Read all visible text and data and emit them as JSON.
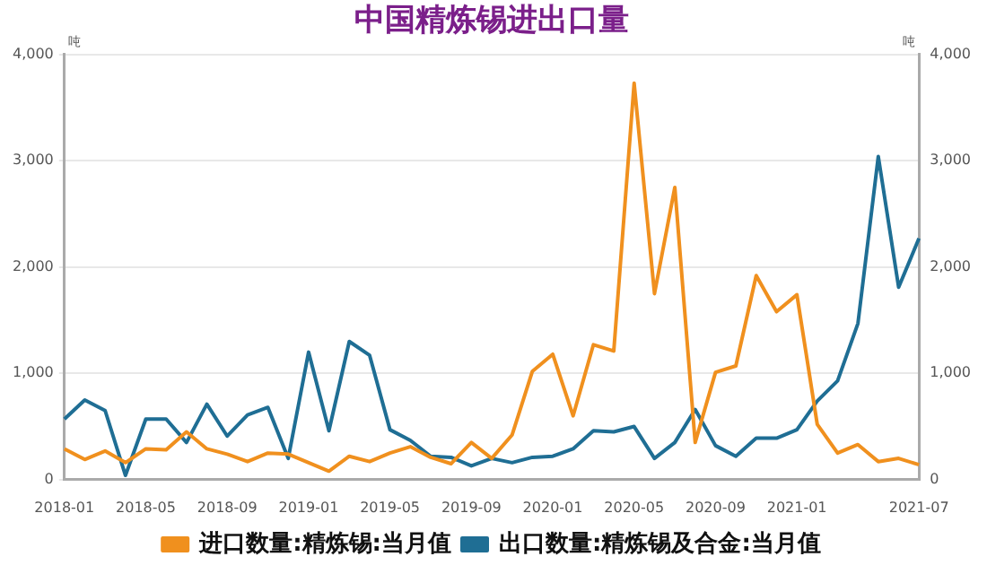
{
  "chart_data": {
    "type": "line",
    "title": "中国精炼锡进出口量",
    "ylabel": "吨",
    "y2label": "吨",
    "categories": [
      "2018-01",
      null,
      null,
      null,
      "2018-05",
      null,
      null,
      null,
      "2018-09",
      null,
      null,
      null,
      "2019-01",
      null,
      null,
      null,
      "2019-05",
      null,
      null,
      null,
      "2019-09",
      null,
      null,
      null,
      "2020-01",
      null,
      null,
      null,
      "2020-05",
      null,
      null,
      null,
      "2020-09",
      null,
      null,
      null,
      "2021-01",
      null,
      null,
      null,
      null,
      null,
      "2021-07"
    ],
    "series": [
      {
        "name": "进口数量:精炼锡:当月值",
        "color": "#f0901e",
        "values": [
          290,
          190,
          270,
          160,
          290,
          280,
          450,
          290,
          240,
          170,
          250,
          240,
          160,
          80,
          220,
          170,
          250,
          310,
          210,
          150,
          350,
          200,
          420,
          1020,
          1180,
          600,
          1270,
          1210,
          3730,
          1750,
          2750,
          350,
          1010,
          1070,
          1920,
          1580,
          1740,
          520,
          250,
          330,
          170,
          200,
          140
        ]
      },
      {
        "name": "出口数量:精炼锡及合金:当月值",
        "color": "#1f6e94",
        "values": [
          570,
          750,
          650,
          40,
          570,
          570,
          350,
          710,
          410,
          610,
          680,
          200,
          1200,
          460,
          1300,
          1170,
          470,
          370,
          220,
          210,
          130,
          200,
          160,
          210,
          220,
          290,
          460,
          450,
          500,
          200,
          350,
          660,
          320,
          220,
          390,
          390,
          470,
          740,
          930,
          1470,
          3040,
          1810,
          2270
        ]
      }
    ],
    "ylim": [
      0,
      4000
    ],
    "yticks": [
      {
        "value": 0,
        "label": "0"
      },
      {
        "value": 1000,
        "label": "1,000"
      },
      {
        "value": 2000,
        "label": "2,000"
      },
      {
        "value": 3000,
        "label": "3,000"
      },
      {
        "value": 4000,
        "label": "4,000"
      }
    ],
    "y2lim": [
      0,
      4000
    ],
    "y2ticks": [
      {
        "value": 0,
        "label": "0"
      },
      {
        "value": 1000,
        "label": "1,000"
      },
      {
        "value": 2000,
        "label": "2,000"
      },
      {
        "value": 3000,
        "label": "3,000"
      },
      {
        "value": 4000,
        "label": "4,000"
      }
    ],
    "grid": "y",
    "legend": "bottom",
    "marker": "none",
    "line_style": "solid"
  }
}
